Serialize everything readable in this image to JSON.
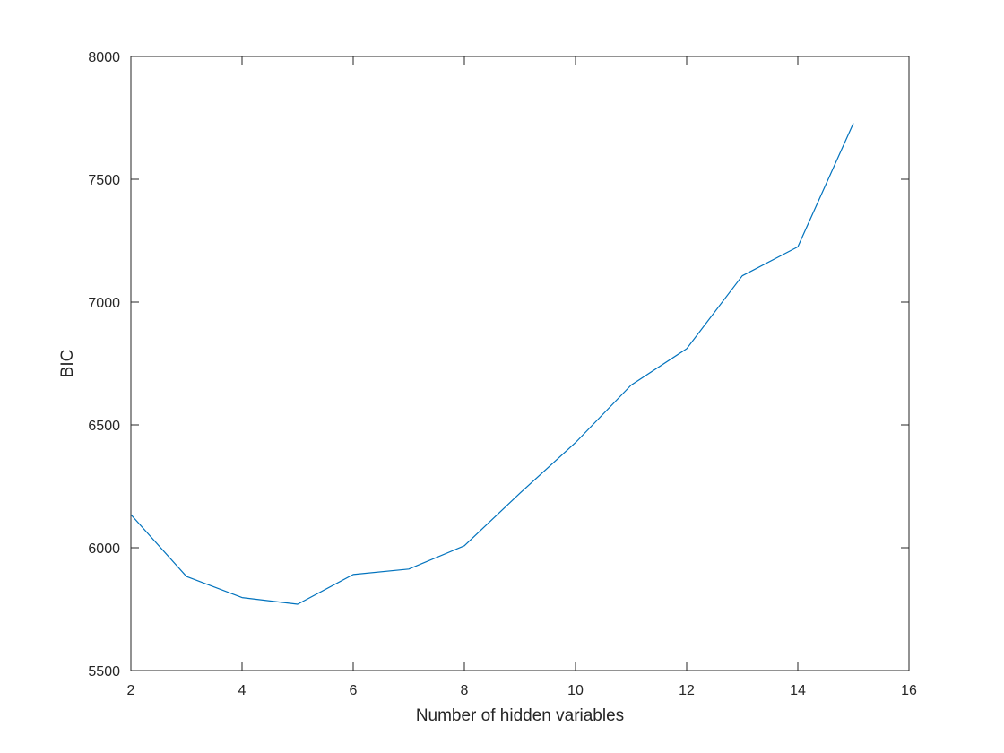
{
  "chart_data": {
    "type": "line",
    "title": "",
    "xlabel": "Number of hidden variables",
    "ylabel": "BIC",
    "xlim": [
      2,
      16
    ],
    "ylim": [
      5500,
      8000
    ],
    "xticks": [
      2,
      4,
      6,
      8,
      10,
      12,
      14,
      16
    ],
    "yticks": [
      5500,
      6000,
      6500,
      7000,
      7500,
      8000
    ],
    "grid": false,
    "legend": "none",
    "series": [
      {
        "color": "#0072BD",
        "x": [
          2,
          3,
          4,
          5,
          6,
          7,
          8,
          9,
          10,
          11,
          12,
          13,
          14,
          15
        ],
        "y": [
          6135,
          5883,
          5797,
          5770,
          5891,
          5913,
          6008,
          6222,
          6428,
          6662,
          6810,
          7107,
          7225,
          7728
        ]
      }
    ]
  }
}
